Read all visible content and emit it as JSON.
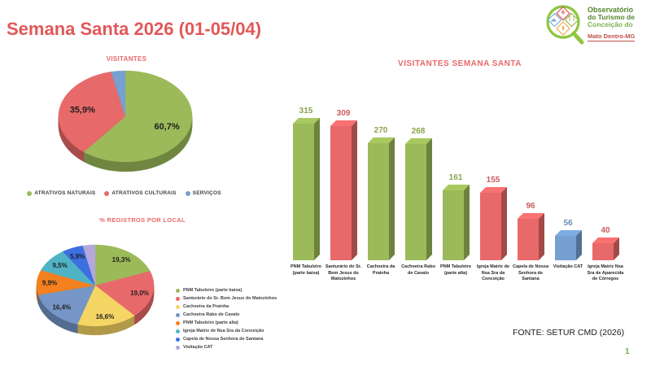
{
  "page": {
    "title": "Semana Santa 2026 (01-05/04)",
    "source": "FONTE: SETUR CMD (2026)",
    "page_number": "1"
  },
  "logo": {
    "line1": "Observatório",
    "line2": "do Turismo de",
    "line3": "Conceição do",
    "line4": "Mato Dentro-MG"
  },
  "colors": {
    "title_red": "#e25757",
    "section_title_red": "#e8696a",
    "green": "#9cba59",
    "red": "#e8696a",
    "blue": "#76a0d0",
    "yellow": "#f5d564",
    "steel_blue": "#7596c6",
    "orange": "#f4801f",
    "teal": "#4fb3c5",
    "royal_blue": "#3d6fe0",
    "lavender": "#b4a8db",
    "page_number_green": "#70ad47"
  },
  "chart_data": [
    {
      "type": "pie",
      "style": "3d",
      "title": "VISITANTES",
      "labels": [
        "ATRATIVOS NATURAIS",
        "ATRATIVOS CULTURAIS",
        "SERVIÇOS"
      ],
      "values": [
        60.7,
        35.9,
        3.4
      ],
      "value_labels": [
        "60,7%",
        "35,9%",
        ""
      ],
      "colors": [
        "#9cba59",
        "#e8696a",
        "#76a0d0"
      ],
      "legend_position": "bottom"
    },
    {
      "type": "pie",
      "style": "3d",
      "title": "% REGISTROS POR LOCAL",
      "labels": [
        "PNM Tabuleiro (parte baixa)",
        "Santurário do Sr. Bom Jesus do Matozinhos",
        "Cachoeira da Prainha",
        "Cachoeira Rabo de Cavalo",
        "PNM Tabuleiro (parte alta)",
        "Igreja Matriz de Nsa Sra da Conceição",
        "Capela de Nossa Senhora de Santana",
        "Visitação CAT"
      ],
      "values": [
        19.3,
        19.0,
        16.6,
        16.4,
        9.9,
        9.5,
        5.9,
        3.4
      ],
      "value_labels": [
        "19,3%",
        "19,0%",
        "16,6%",
        "16,4%",
        "9,9%",
        "9,5%",
        "5,9%",
        ""
      ],
      "colors": [
        "#9cba59",
        "#e8696a",
        "#f5d564",
        "#7596c6",
        "#f4801f",
        "#4fb3c5",
        "#3d6fe0",
        "#b4a8db"
      ],
      "legend_position": "right"
    },
    {
      "type": "bar",
      "style": "3d",
      "title": "VISITANTES SEMANA SANTA",
      "categories": [
        "PNM Tabuleiro (parte baixa)",
        "Santurário do Sr. Bom Jesus do Matozinhos",
        "Cachoeira da Prainha",
        "Cachoeira Rabo de Cavalo",
        "PNM Tabuleiro (parte alta)",
        "Igreja Matriz de Nsa Sra da Conceição",
        "Capela de Nossa Senhora de Santana",
        "Visitação CAT",
        "Igreja Matriz Nsa Sra de Aparecida de Córregos"
      ],
      "values": [
        315,
        309,
        270,
        268,
        161,
        155,
        96,
        56,
        40
      ],
      "colors": [
        "#9cba59",
        "#e8696a",
        "#9cba59",
        "#9cba59",
        "#9cba59",
        "#e8696a",
        "#e8696a",
        "#76a0d0",
        "#e8696a"
      ],
      "ylim": [
        0,
        340
      ],
      "grid": false,
      "data_labels": true,
      "legend_position": "none"
    }
  ]
}
